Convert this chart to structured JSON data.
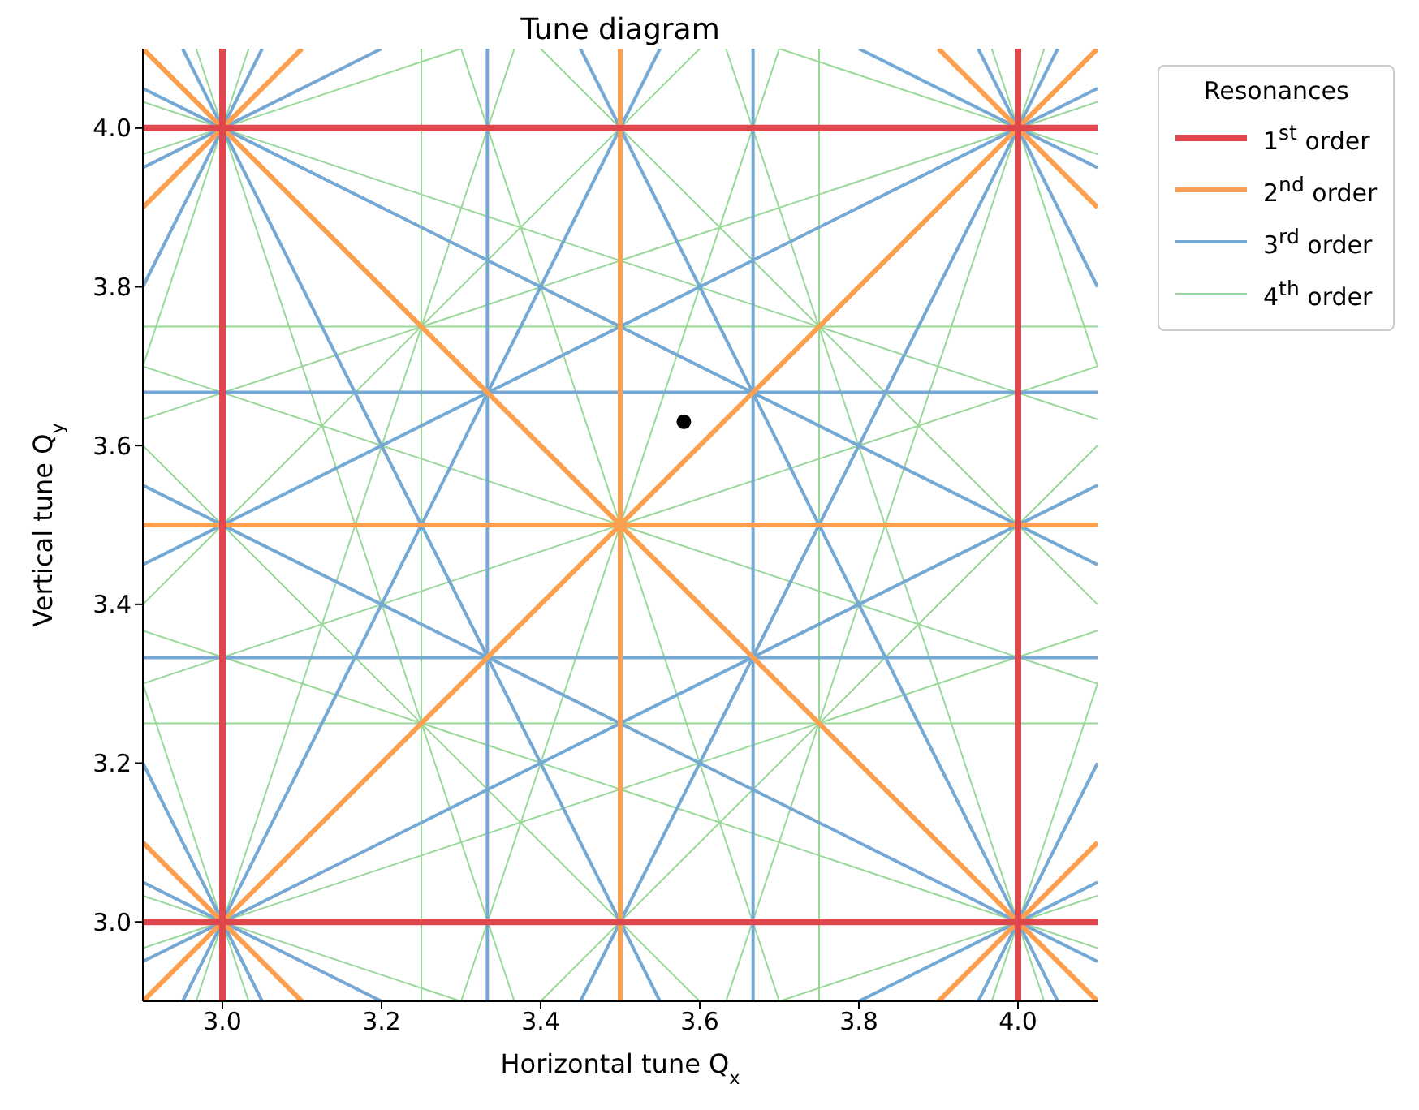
{
  "chart_data": {
    "type": "line",
    "title": "Tune diagram",
    "xlabel": "Horizontal tune Q$_{x}$",
    "ylabel": "Vertical tune Q$_{y}$",
    "legend_title": "Resonances",
    "legend": "right",
    "marker": "none",
    "line_style": "solid",
    "xlim": [
      2.9,
      4.1
    ],
    "ylim": [
      2.9,
      4.1
    ],
    "xticks": [
      {
        "value": 3,
        "label": "3.0"
      },
      {
        "value": 3.2,
        "label": "3.2"
      },
      {
        "value": 3.4,
        "label": "3.4"
      },
      {
        "value": 3.6,
        "label": "3.6"
      },
      {
        "value": 3.8,
        "label": "3.8"
      },
      {
        "value": 4,
        "label": "4.0"
      }
    ],
    "yticks": [
      {
        "value": 3,
        "label": "3.0"
      },
      {
        "value": 3.2,
        "label": "3.2"
      },
      {
        "value": 3.4,
        "label": "3.4"
      },
      {
        "value": 3.6,
        "label": "3.6"
      },
      {
        "value": 3.8,
        "label": "3.8"
      },
      {
        "value": 4,
        "label": "4.0"
      }
    ],
    "series": [
      {
        "name": "1$^{st}$ order",
        "color": "#e0474c",
        "x": [
          3,
          3
        ],
        "values": [
          2.9,
          4.1
        ]
      },
      {
        "color": "#e0474c",
        "x": [
          4,
          4
        ],
        "values": [
          2.9,
          4.1
        ]
      },
      {
        "color": "#e0474c",
        "x": [
          2.9,
          4.1
        ],
        "values": [
          3,
          3
        ]
      },
      {
        "color": "#e0474c",
        "x": [
          2.9,
          4.1
        ],
        "values": [
          4,
          4
        ]
      },
      {
        "name": "2$^{nd}$ order",
        "color": "#fca050",
        "x": [
          3.5,
          3.5
        ],
        "values": [
          2.9,
          4.1
        ]
      },
      {
        "color": "#fca050",
        "x": [
          2.9,
          4.1
        ],
        "values": [
          3.5,
          3.5
        ]
      },
      {
        "color": "#fca050",
        "x": [
          2.9,
          3.1
        ],
        "values": [
          3.1,
          2.9
        ]
      },
      {
        "color": "#fca050",
        "x": [
          2.9,
          4.1
        ],
        "values": [
          4.1,
          2.9
        ]
      },
      {
        "color": "#fca050",
        "x": [
          3.9,
          4.1
        ],
        "values": [
          4.1,
          3.9
        ]
      },
      {
        "color": "#fca050",
        "x": [
          2.9,
          4.1
        ],
        "values": [
          2.9,
          4.1
        ]
      },
      {
        "color": "#fca050",
        "x": [
          3.9,
          4.1
        ],
        "values": [
          2.9,
          3.1
        ]
      },
      {
        "color": "#fca050",
        "x": [
          2.9,
          3.1
        ],
        "values": [
          3.9,
          4.1
        ]
      },
      {
        "name": "3$^{rd}$ order",
        "color": "#75a9d4",
        "x": [
          3.333,
          3.333
        ],
        "values": [
          2.9,
          4.1
        ]
      },
      {
        "color": "#75a9d4",
        "x": [
          3.667,
          3.667
        ],
        "values": [
          2.9,
          4.1
        ]
      },
      {
        "color": "#75a9d4",
        "x": [
          2.9,
          4.1
        ],
        "values": [
          3.333,
          3.333
        ]
      },
      {
        "color": "#75a9d4",
        "x": [
          2.9,
          4.1
        ],
        "values": [
          3.667,
          3.667
        ]
      },
      {
        "color": "#75a9d4",
        "x": [
          2.9,
          3.05
        ],
        "values": [
          3.2,
          2.9
        ]
      },
      {
        "color": "#75a9d4",
        "x": [
          2.95,
          3.55
        ],
        "values": [
          4.1,
          2.9
        ]
      },
      {
        "color": "#75a9d4",
        "x": [
          3.45,
          4.05
        ],
        "values": [
          4.1,
          2.9
        ]
      },
      {
        "color": "#75a9d4",
        "x": [
          3.95,
          4.1
        ],
        "values": [
          4.1,
          3.8
        ]
      },
      {
        "color": "#75a9d4",
        "x": [
          2.9,
          3.05
        ],
        "values": [
          3.8,
          4.1
        ]
      },
      {
        "color": "#75a9d4",
        "x": [
          2.95,
          3.55
        ],
        "values": [
          2.9,
          4.1
        ]
      },
      {
        "color": "#75a9d4",
        "x": [
          3.45,
          4.05
        ],
        "values": [
          2.9,
          4.1
        ]
      },
      {
        "color": "#75a9d4",
        "x": [
          3.95,
          4.1
        ],
        "values": [
          2.9,
          3.2
        ]
      },
      {
        "color": "#75a9d4",
        "x": [
          3.2,
          2.9
        ],
        "values": [
          2.9,
          3.05
        ]
      },
      {
        "color": "#75a9d4",
        "x": [
          4.1,
          2.9
        ],
        "values": [
          2.95,
          3.55
        ]
      },
      {
        "color": "#75a9d4",
        "x": [
          4.1,
          2.9
        ],
        "values": [
          3.45,
          4.05
        ]
      },
      {
        "color": "#75a9d4",
        "x": [
          4.1,
          3.8
        ],
        "values": [
          3.95,
          4.1
        ]
      },
      {
        "color": "#75a9d4",
        "x": [
          3.8,
          4.1
        ],
        "values": [
          2.9,
          3.05
        ]
      },
      {
        "color": "#75a9d4",
        "x": [
          2.9,
          4.1
        ],
        "values": [
          2.95,
          3.55
        ]
      },
      {
        "color": "#75a9d4",
        "x": [
          2.9,
          4.1
        ],
        "values": [
          3.45,
          4.05
        ]
      },
      {
        "color": "#75a9d4",
        "x": [
          2.9,
          3.2
        ],
        "values": [
          3.95,
          4.1
        ]
      },
      {
        "name": "4$^{th}$ order",
        "color": "#98d898",
        "x": [
          3.25,
          3.25
        ],
        "values": [
          2.9,
          4.1
        ]
      },
      {
        "color": "#98d898",
        "x": [
          3.75,
          3.75
        ],
        "values": [
          2.9,
          4.1
        ]
      },
      {
        "color": "#98d898",
        "x": [
          2.9,
          4.1
        ],
        "values": [
          3.25,
          3.25
        ]
      },
      {
        "color": "#98d898",
        "x": [
          2.9,
          4.1
        ],
        "values": [
          3.75,
          3.75
        ]
      },
      {
        "color": "#98d898",
        "x": [
          2.9,
          3.6
        ],
        "values": [
          3.6,
          2.9
        ]
      },
      {
        "color": "#98d898",
        "x": [
          3.4,
          4.1
        ],
        "values": [
          4.1,
          3.4
        ]
      },
      {
        "color": "#98d898",
        "x": [
          3.4,
          4.1
        ],
        "values": [
          2.9,
          3.6
        ]
      },
      {
        "color": "#98d898",
        "x": [
          2.9,
          3.6
        ],
        "values": [
          3.4,
          4.1
        ]
      },
      {
        "color": "#98d898",
        "x": [
          2.9,
          3.033
        ],
        "values": [
          3.3,
          2.9
        ]
      },
      {
        "color": "#98d898",
        "x": [
          2.967,
          3.367
        ],
        "values": [
          4.1,
          2.9
        ]
      },
      {
        "color": "#98d898",
        "x": [
          3.3,
          3.7
        ],
        "values": [
          4.1,
          2.9
        ]
      },
      {
        "color": "#98d898",
        "x": [
          3.633,
          4.033
        ],
        "values": [
          4.1,
          2.9
        ]
      },
      {
        "color": "#98d898",
        "x": [
          3.967,
          4.1
        ],
        "values": [
          4.1,
          3.7
        ]
      },
      {
        "color": "#98d898",
        "x": [
          2.9,
          3.033
        ],
        "values": [
          3.7,
          4.1
        ]
      },
      {
        "color": "#98d898",
        "x": [
          2.967,
          3.367
        ],
        "values": [
          2.9,
          4.1
        ]
      },
      {
        "color": "#98d898",
        "x": [
          3.3,
          3.7
        ],
        "values": [
          2.9,
          4.1
        ]
      },
      {
        "color": "#98d898",
        "x": [
          3.633,
          4.033
        ],
        "values": [
          2.9,
          4.1
        ]
      },
      {
        "color": "#98d898",
        "x": [
          3.967,
          4.1
        ],
        "values": [
          2.9,
          3.3
        ]
      },
      {
        "color": "#98d898",
        "x": [
          3.3,
          2.9
        ],
        "values": [
          2.9,
          3.033
        ]
      },
      {
        "color": "#98d898",
        "x": [
          4.1,
          2.9
        ],
        "values": [
          2.967,
          3.367
        ]
      },
      {
        "color": "#98d898",
        "x": [
          4.1,
          2.9
        ],
        "values": [
          3.3,
          3.7
        ]
      },
      {
        "color": "#98d898",
        "x": [
          4.1,
          2.9
        ],
        "values": [
          3.633,
          4.033
        ]
      },
      {
        "color": "#98d898",
        "x": [
          4.1,
          3.7
        ],
        "values": [
          3.967,
          4.1
        ]
      },
      {
        "color": "#98d898",
        "x": [
          3.7,
          4.1
        ],
        "values": [
          2.9,
          3.033
        ]
      },
      {
        "color": "#98d898",
        "x": [
          2.9,
          4.1
        ],
        "values": [
          2.967,
          3.367
        ]
      },
      {
        "color": "#98d898",
        "x": [
          2.9,
          4.1
        ],
        "values": [
          3.3,
          3.7
        ]
      },
      {
        "color": "#98d898",
        "x": [
          2.9,
          4.1
        ],
        "values": [
          3.633,
          4.033
        ]
      },
      {
        "color": "#98d898",
        "x": [
          2.9,
          3.3
        ],
        "values": [
          3.967,
          4.1
        ]
      },
      {
        "type": "scatter",
        "color": "#000000",
        "marker": "circle",
        "x": [
          3.58
        ],
        "values": [
          3.63
        ]
      }
    ]
  }
}
